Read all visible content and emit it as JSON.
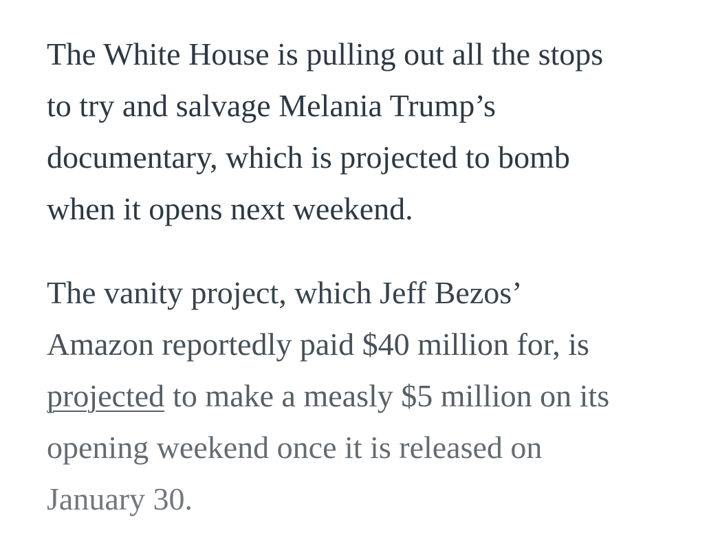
{
  "article": {
    "paragraphs": [
      {
        "lines": [
          "The White House is pulling out all the stops",
          "to try and salvage Melania Trump’s",
          "documentary, which is projected to bomb",
          "when it opens next weekend."
        ]
      },
      {
        "lines": [
          "The vanity project, which Jeff Bezos’",
          "Amazon reportedly paid $40 million for, is",
          {
            "link": "projected",
            "after": "to make a measly $5 million on its"
          },
          "opening weekend once it is released on",
          "January 30."
        ]
      }
    ]
  }
}
